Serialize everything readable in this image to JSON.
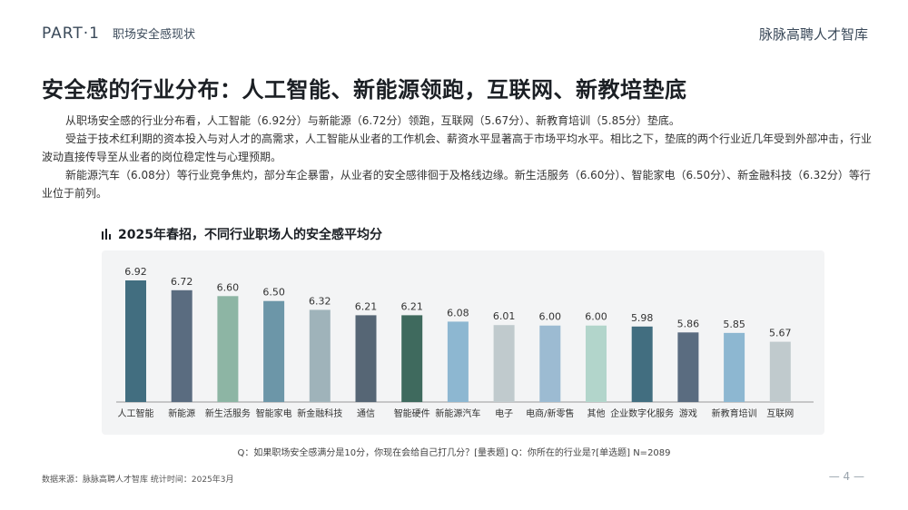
{
  "header": {
    "part": "PART·1",
    "section": "职场安全感现状",
    "brand": "脉脉高聘人才智库"
  },
  "headline": "安全感的行业分布：人工智能、新能源领跑，互联网、新教培垫底",
  "paragraphs": [
    "从职场安全感的行业分布看，人工智能（6.92分）与新能源（6.72分）领跑，互联网（5.67分）、新教育培训（5.85分）垫底。",
    "受益于技术红利期的资本投入与对人才的高需求，人工智能从业者的工作机会、薪资水平显著高于市场平均水平。相比之下，垫底的两个行业近几年受到外部冲击，行业波动直接传导至从业者的岗位稳定性与心理预期。",
    "新能源汽车（6.08分）等行业竞争焦灼，部分车企暴雷，从业者的安全感徘徊于及格线边缘。新生活服务（6.60分）、智能家电（6.50分）、新金融科技（6.32分）等行业位于前列。"
  ],
  "chart_data": {
    "type": "bar",
    "title": "2025年春招，不同行业职场人的安全感平均分",
    "categories": [
      "人工智能",
      "新能源",
      "新生活服务",
      "智能家电",
      "新金融科技",
      "通信",
      "智能硬件",
      "新能源汽车",
      "电子",
      "电商/新零售",
      "其他",
      "企业数字化服务",
      "游戏",
      "新教育培训",
      "互联网"
    ],
    "values": [
      6.92,
      6.72,
      6.6,
      6.5,
      6.32,
      6.21,
      6.21,
      6.08,
      6.01,
      6.0,
      6.0,
      5.98,
      5.86,
      5.85,
      5.67
    ],
    "value_labels": [
      "6.92",
      "6.72",
      "6.60",
      "6.50",
      "6.32",
      "6.21",
      "6.21",
      "6.08",
      "6.01",
      "6.00",
      "6.00",
      "5.98",
      "5.86",
      "5.85",
      "5.67"
    ],
    "colors": [
      "#426e80",
      "#5a6c80",
      "#8db5a4",
      "#6c96a8",
      "#9fb3ba",
      "#566675",
      "#3f6a5e",
      "#8db7d1",
      "#c0cacd",
      "#9cbbd2",
      "#b2d5cb",
      "#426e80",
      "#5a6c80",
      "#8db7d1",
      "#c0cacd"
    ],
    "legend": "none",
    "grid": false
  },
  "footnote": "Q：如果职场安全感满分是10分，你现在会给自己打几分？[量表题]    Q：你所在的行业是?[单选题]    N=2089",
  "source": "数据来源：脉脉高聘人才智库      统计时间：2025年3月",
  "page_number": "— 4 —"
}
